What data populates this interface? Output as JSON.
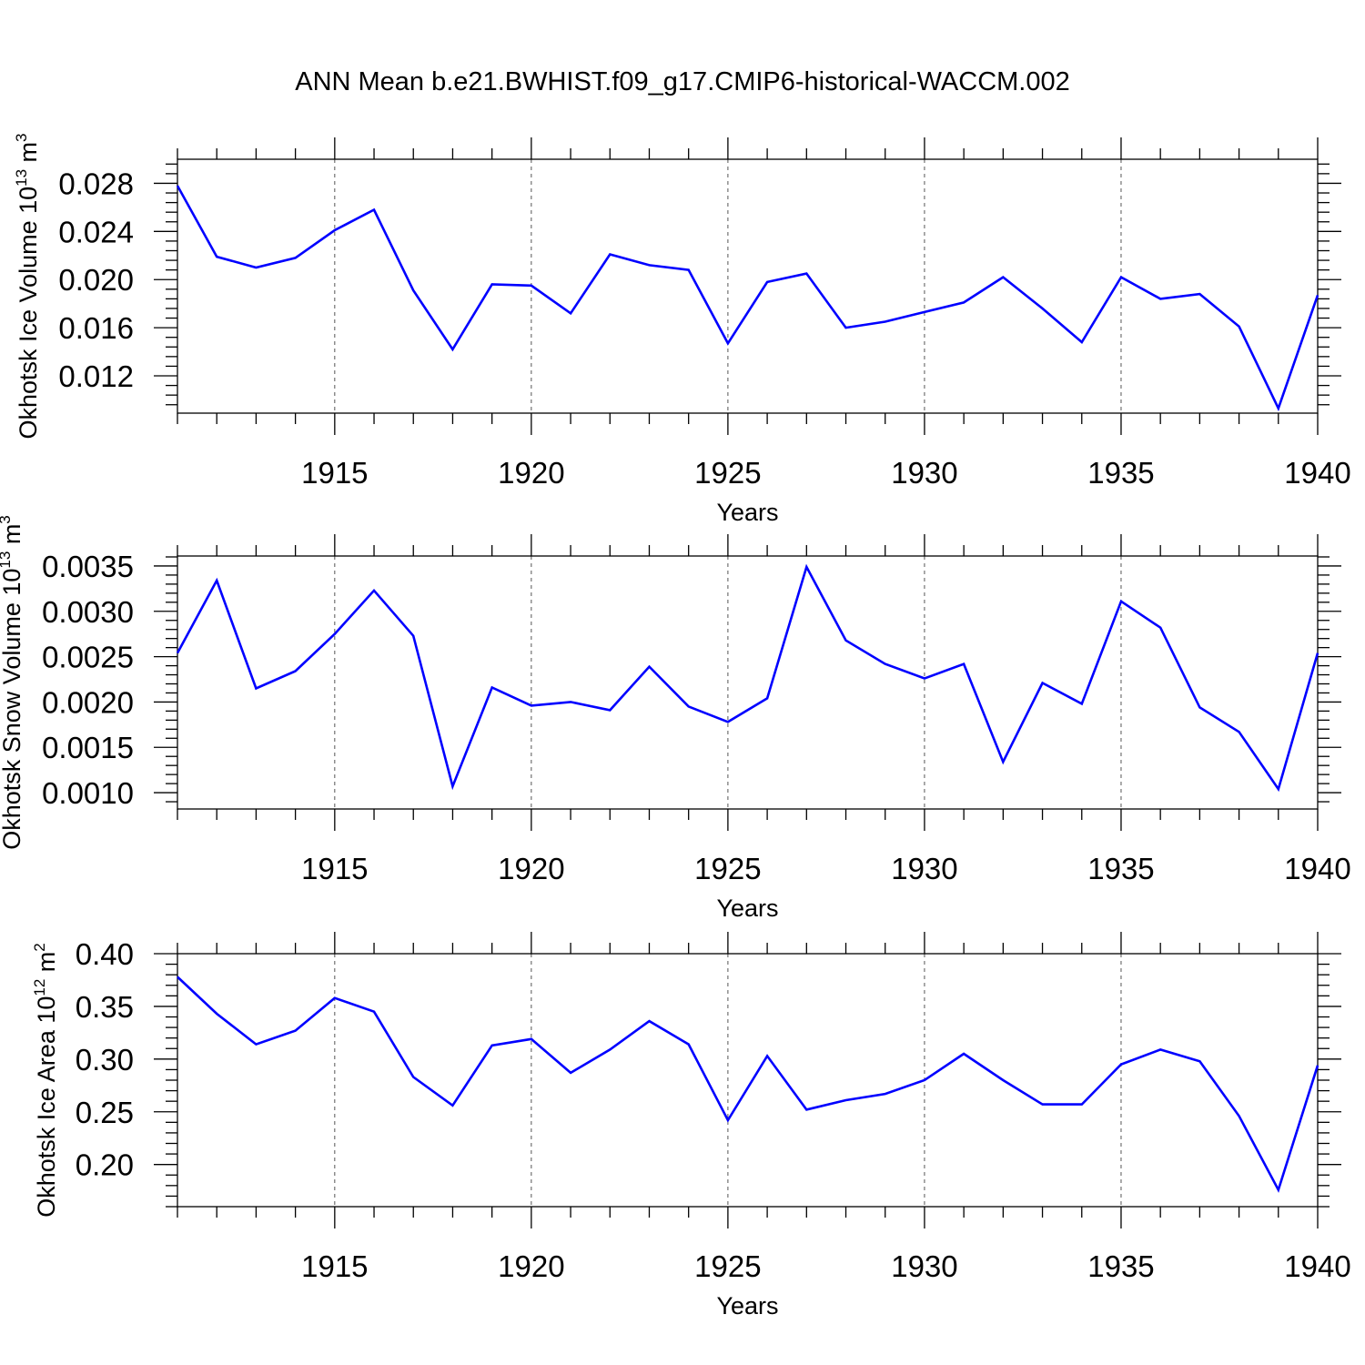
{
  "figure": {
    "title": "ANN Mean b.e21.BWHIST.f09_g17.CMIP6-historical-WACCM.002"
  },
  "colors": {
    "line": "#0000ff",
    "axis": "#000000",
    "grid": "#555555"
  },
  "chart_data": [
    {
      "type": "line",
      "xlabel": "Years",
      "ylabel": {
        "text": "Okhotsk Ice Volume 10",
        "sup": "13",
        "unit": " m",
        "unit_sup": "3"
      },
      "xlim": [
        1911,
        1940
      ],
      "ylim": [
        0.0089,
        0.03
      ],
      "x_major_ticks": [
        1915,
        1920,
        1925,
        1930,
        1935,
        1940
      ],
      "x_tick_labels": [
        "1915",
        "1920",
        "1925",
        "1930",
        "1935",
        "1940"
      ],
      "y_major_ticks": [
        0.012,
        0.016,
        0.02,
        0.024,
        0.028
      ],
      "y_tick_labels": [
        "0.012",
        "0.016",
        "0.020",
        "0.024",
        "0.028"
      ],
      "y_minor_step": 0.0008,
      "grid": "dashed vertical at major x ticks",
      "series": [
        {
          "x": [
            1911,
            1912,
            1913,
            1914,
            1915,
            1916,
            1917,
            1918,
            1919,
            1920,
            1921,
            1922,
            1923,
            1924,
            1925,
            1926,
            1927,
            1928,
            1929,
            1930,
            1931,
            1932,
            1933,
            1934,
            1935,
            1936,
            1937,
            1938,
            1939,
            1940
          ],
          "values": [
            0.0278,
            0.0219,
            0.021,
            0.0218,
            0.0241,
            0.0258,
            0.0191,
            0.0142,
            0.0196,
            0.0195,
            0.0172,
            0.0221,
            0.0212,
            0.0208,
            0.0147,
            0.0198,
            0.0205,
            0.016,
            0.0165,
            0.0173,
            0.0181,
            0.0202,
            0.0176,
            0.0148,
            0.0202,
            0.0184,
            0.0188,
            0.0161,
            0.0093,
            0.0187
          ]
        }
      ]
    },
    {
      "type": "line",
      "xlabel": "Years",
      "ylabel": {
        "text": "Okhotsk Snow Volume 10",
        "sup": "13",
        "unit": " m",
        "unit_sup": "3"
      },
      "xlim": [
        1911,
        1940
      ],
      "ylim": [
        0.00082,
        0.00361
      ],
      "x_major_ticks": [
        1915,
        1920,
        1925,
        1930,
        1935,
        1940
      ],
      "x_tick_labels": [
        "1915",
        "1920",
        "1925",
        "1930",
        "1935",
        "1940"
      ],
      "y_major_ticks": [
        0.001,
        0.0015,
        0.002,
        0.0025,
        0.003,
        0.0035
      ],
      "y_tick_labels": [
        "0.0010",
        "0.0015",
        "0.0020",
        "0.0025",
        "0.0030",
        "0.0035"
      ],
      "y_minor_step": 0.0001,
      "grid": "dashed vertical at major x ticks",
      "series": [
        {
          "x": [
            1911,
            1912,
            1913,
            1914,
            1915,
            1916,
            1917,
            1918,
            1919,
            1920,
            1921,
            1922,
            1923,
            1924,
            1925,
            1926,
            1927,
            1928,
            1929,
            1930,
            1931,
            1932,
            1933,
            1934,
            1935,
            1936,
            1937,
            1938,
            1939,
            1940
          ],
          "values": [
            0.00254,
            0.00334,
            0.00215,
            0.00234,
            0.00275,
            0.00323,
            0.00273,
            0.00107,
            0.00216,
            0.00196,
            0.002,
            0.00191,
            0.00239,
            0.00195,
            0.00178,
            0.00204,
            0.00349,
            0.00268,
            0.00242,
            0.00226,
            0.00242,
            0.00134,
            0.00221,
            0.00198,
            0.00311,
            0.00282,
            0.00194,
            0.00167,
            0.00104,
            0.00254
          ]
        }
      ]
    },
    {
      "type": "line",
      "xlabel": "Years",
      "ylabel": {
        "text": "Okhotsk Ice Area 10",
        "sup": "12",
        "unit": " m",
        "unit_sup": "2"
      },
      "xlim": [
        1911,
        1940
      ],
      "ylim": [
        0.16,
        0.4
      ],
      "x_major_ticks": [
        1915,
        1920,
        1925,
        1930,
        1935,
        1940
      ],
      "x_tick_labels": [
        "1915",
        "1920",
        "1925",
        "1930",
        "1935",
        "1940"
      ],
      "y_major_ticks": [
        0.2,
        0.25,
        0.3,
        0.35,
        0.4
      ],
      "y_tick_labels": [
        "0.20",
        "0.25",
        "0.30",
        "0.35",
        "0.40"
      ],
      "y_minor_step": 0.01,
      "grid": "dashed vertical at major x ticks",
      "series": [
        {
          "x": [
            1911,
            1912,
            1913,
            1914,
            1915,
            1916,
            1917,
            1918,
            1919,
            1920,
            1921,
            1922,
            1923,
            1924,
            1925,
            1926,
            1927,
            1928,
            1929,
            1930,
            1931,
            1932,
            1933,
            1934,
            1935,
            1936,
            1937,
            1938,
            1939,
            1940
          ],
          "values": [
            0.378,
            0.343,
            0.314,
            0.327,
            0.358,
            0.345,
            0.283,
            0.256,
            0.313,
            0.319,
            0.287,
            0.309,
            0.336,
            0.314,
            0.242,
            0.303,
            0.252,
            0.261,
            0.267,
            0.28,
            0.305,
            0.28,
            0.257,
            0.257,
            0.295,
            0.309,
            0.298,
            0.246,
            0.176,
            0.294
          ]
        }
      ]
    }
  ]
}
